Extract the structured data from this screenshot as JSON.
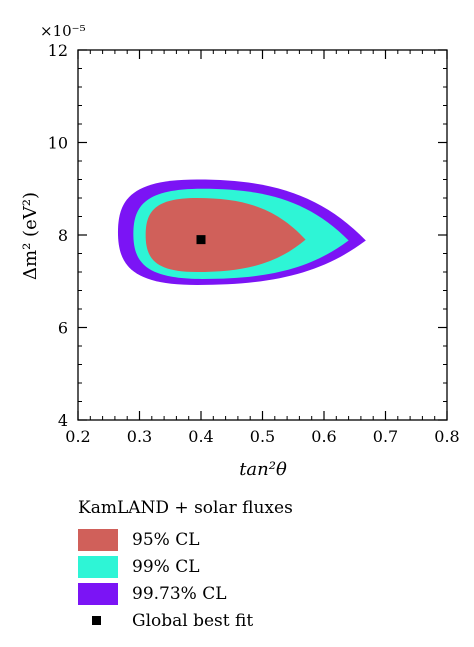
{
  "chart_data": {
    "type": "contour",
    "xlabel": "tan²θ",
    "ylabel": "Δm² (eV²)",
    "y_multiplier": "×10⁻⁵",
    "xlim": [
      0.2,
      0.8
    ],
    "ylim": [
      4,
      12
    ],
    "xticks": [
      0.2,
      0.3,
      0.4,
      0.5,
      0.6,
      0.7,
      0.8
    ],
    "xtick_labels": [
      "0.2",
      "0.3",
      "0.4",
      "0.5",
      "0.6",
      "0.7",
      "0.8"
    ],
    "yticks": [
      4,
      6,
      8,
      10,
      12
    ],
    "ytick_labels": [
      "4",
      "6",
      "8",
      "10",
      "12"
    ],
    "regions": [
      {
        "name": "99.73% CL",
        "color": "#7b14f5",
        "x_range": [
          0.265,
          0.668
        ],
        "y_range": [
          6.92,
          9.2
        ],
        "peak_y": 9.2,
        "tip_y": 7.88
      },
      {
        "name": "99% CL",
        "color": "#2ef5d6",
        "x_range": [
          0.29,
          0.64
        ],
        "y_range": [
          7.05,
          9.0
        ],
        "peak_y": 9.0,
        "tip_y": 7.88
      },
      {
        "name": "95% CL",
        "color": "#d0605a",
        "x_range": [
          0.31,
          0.57
        ],
        "y_range": [
          7.2,
          8.8
        ],
        "peak_y": 8.8,
        "tip_y": 7.9
      }
    ],
    "best_fit": {
      "name": "Global best fit",
      "x": 0.4,
      "y": 7.9
    },
    "legend": {
      "title": "KamLAND + solar fluxes",
      "entries": [
        "95% CL",
        "99% CL",
        "99.73% CL",
        "Global best fit"
      ]
    }
  }
}
